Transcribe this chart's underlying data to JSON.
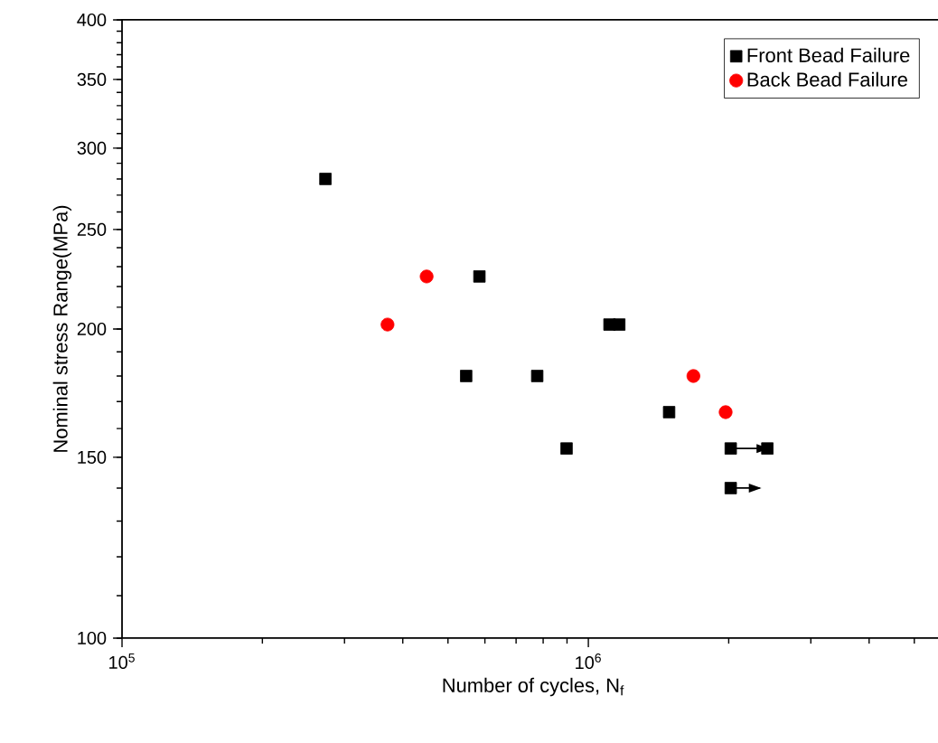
{
  "chart_data": {
    "type": "scatter",
    "xlabel": "Number of cycles, N$_{f}$",
    "ylabel": "Nominal stress Range(MPa)",
    "log": "xy",
    "xlim": [
      100000,
      5800000
    ],
    "ylim": [
      100,
      400
    ],
    "xticks": [
      {
        "value": 100000,
        "label": "10$^{5}$"
      },
      {
        "value": 1000000,
        "label": "10$^{6}$"
      }
    ],
    "yticks": [
      100,
      150,
      200,
      250,
      300,
      350,
      400
    ],
    "legend": "top right",
    "grid": false,
    "series": [
      {
        "name": "Front Bead Failure",
        "color": "#000000",
        "marker": "square",
        "x": [
          273000,
          547000,
          584000,
          777000,
          898000,
          1110000,
          1165000,
          1490000,
          2020000,
          2420000,
          2020000
        ],
        "values": [
          280,
          180,
          225,
          180,
          153,
          202,
          202,
          166,
          153,
          153,
          140
        ]
      },
      {
        "name": "Back Bead Failure",
        "color": "#ff0000",
        "marker": "circle",
        "x": [
          371000,
          450000,
          1680000,
          1970000
        ],
        "values": [
          202,
          225,
          180,
          166
        ]
      },
      {
        "type": "line",
        "color": "#000000",
        "marker": "none",
        "x": [
          2020000,
          2420000
        ],
        "values": [
          153,
          153
        ]
      },
      {
        "type": "line",
        "color": "#000000",
        "marker": "none",
        "x": [
          2020000,
          2330000
        ],
        "values": [
          140,
          140
        ]
      }
    ]
  }
}
